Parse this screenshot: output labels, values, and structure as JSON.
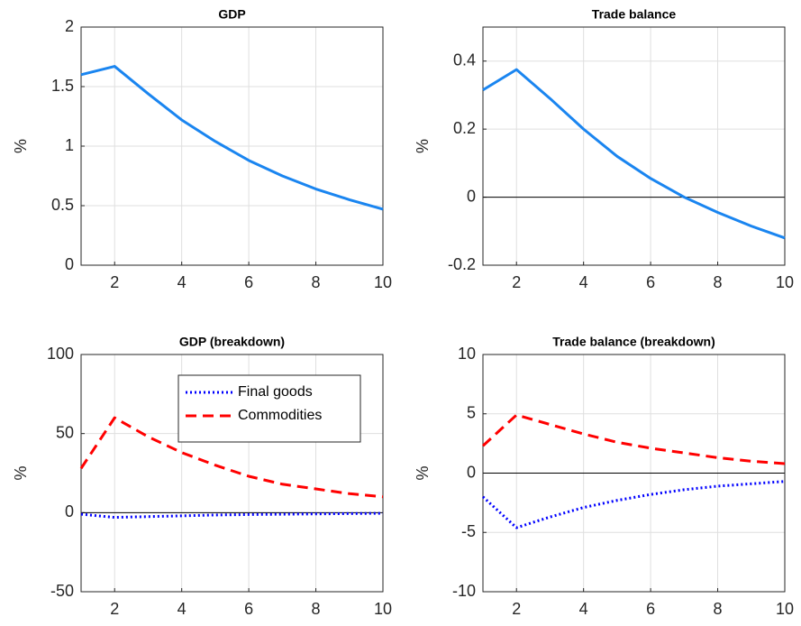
{
  "chart_data": [
    {
      "type": "line",
      "title": "GDP",
      "ylabel": "%",
      "x": [
        1,
        2,
        3,
        4,
        5,
        6,
        7,
        8,
        9,
        10
      ],
      "values": [
        1.6,
        1.67,
        1.44,
        1.22,
        1.04,
        0.88,
        0.75,
        0.64,
        0.55,
        0.47
      ],
      "color": "#1a85f0",
      "xlim": [
        1,
        10
      ],
      "xticks": [
        2,
        4,
        6,
        8,
        10
      ],
      "ylim": [
        0,
        2
      ],
      "yticks": [
        0,
        0.5,
        1,
        1.5,
        2
      ],
      "grid": true,
      "zero_line": false
    },
    {
      "type": "line",
      "title": "Trade balance",
      "ylabel": "%",
      "x": [
        1,
        2,
        3,
        4,
        5,
        6,
        7,
        8,
        9,
        10
      ],
      "values": [
        0.315,
        0.375,
        0.29,
        0.2,
        0.12,
        0.055,
        0.0,
        -0.045,
        -0.085,
        -0.12
      ],
      "color": "#1a85f0",
      "xlim": [
        1,
        10
      ],
      "xticks": [
        2,
        4,
        6,
        8,
        10
      ],
      "ylim": [
        -0.2,
        0.5
      ],
      "yticks": [
        -0.2,
        0,
        0.2,
        0.4
      ],
      "grid": true,
      "zero_line": true
    },
    {
      "type": "line",
      "title": "GDP (breakdown)",
      "ylabel": "%",
      "x": [
        1,
        2,
        3,
        4,
        5,
        6,
        7,
        8,
        9,
        10
      ],
      "series": [
        {
          "name": "Final goods",
          "color": "#0000ff",
          "dash": "dotted",
          "values": [
            -1,
            -3,
            -2.5,
            -2,
            -1.5,
            -1.2,
            -1,
            -0.8,
            -0.6,
            -0.4
          ]
        },
        {
          "name": "Commodities",
          "color": "#ff0000",
          "dash": "dashed",
          "values": [
            28,
            60,
            48,
            38,
            30,
            23,
            18,
            15,
            12,
            10
          ]
        }
      ],
      "legend": "north-east",
      "xlim": [
        1,
        10
      ],
      "xticks": [
        2,
        4,
        6,
        8,
        10
      ],
      "ylim": [
        -50,
        100
      ],
      "yticks": [
        -50,
        0,
        50,
        100
      ],
      "grid": true,
      "zero_line": true
    },
    {
      "type": "line",
      "title": "Trade balance (breakdown)",
      "ylabel": "%",
      "x": [
        1,
        2,
        3,
        4,
        5,
        6,
        7,
        8,
        9,
        10
      ],
      "series": [
        {
          "color": "#0000ff",
          "dash": "dotted",
          "values": [
            -2,
            -4.6,
            -3.7,
            -2.9,
            -2.3,
            -1.8,
            -1.4,
            -1.1,
            -0.9,
            -0.7
          ]
        },
        {
          "color": "#ff0000",
          "dash": "dashed",
          "values": [
            2.3,
            4.9,
            4.1,
            3.3,
            2.6,
            2.1,
            1.7,
            1.3,
            1.0,
            0.8
          ]
        }
      ],
      "xlim": [
        1,
        10
      ],
      "xticks": [
        2,
        4,
        6,
        8,
        10
      ],
      "ylim": [
        -10,
        10
      ],
      "yticks": [
        -10,
        -5,
        0,
        5,
        10
      ],
      "grid": true,
      "zero_line": true
    }
  ]
}
